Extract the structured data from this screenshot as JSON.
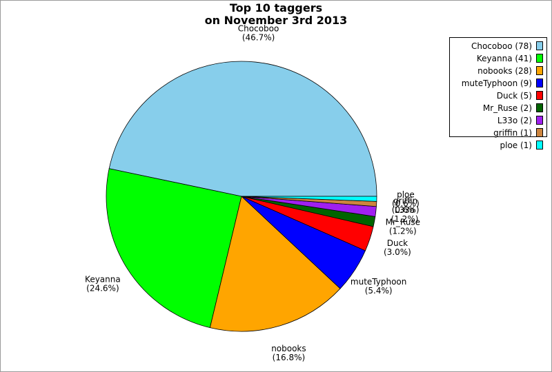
{
  "chart_data": {
    "type": "pie",
    "title": [
      "Top 10 taggers",
      "on November 3rd 2013"
    ],
    "categories": [
      "Chocoboo",
      "Keyanna",
      "nobooks",
      "muteTyphoon",
      "Duck",
      "Mr_Ruse",
      "L33o",
      "griffin",
      "ploe"
    ],
    "values": [
      78,
      41,
      28,
      9,
      5,
      2,
      2,
      1,
      1
    ],
    "value_labels": [
      "(46.7%)",
      "(24.6%)",
      "(16.8%)",
      "(5.4%)",
      "(3.0%)",
      "(1.2%)",
      "(1.2%)",
      "(0.6%)",
      "(0.6%)"
    ],
    "legend_labels": [
      "Chocoboo (78)",
      "Keyanna (41)",
      "nobooks (28)",
      "muteTyphoon (9)",
      "Duck (5)",
      "Mr_Ruse (2)",
      "L33o (2)",
      "griffin (1)",
      "ploe (1)"
    ],
    "colors": [
      "#87ceeb",
      "#00ff00",
      "#ffa500",
      "#0000ff",
      "#ff0000",
      "#006400",
      "#a020f0",
      "#cd853f",
      "#00ffff"
    ],
    "legend_position": "upper right"
  }
}
